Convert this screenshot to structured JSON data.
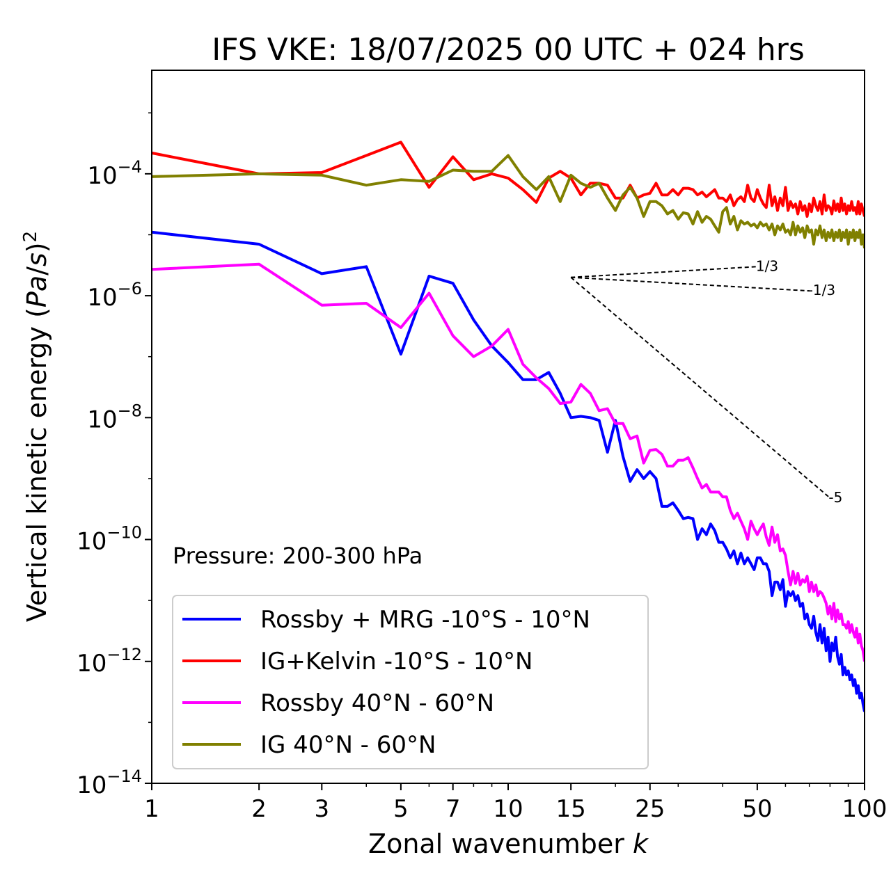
{
  "chart_data": {
    "type": "line",
    "title": "IFS VKE: 18/07/2025 00 UTC + 024 hrs",
    "xlabel": "Zonal wavenumber k",
    "ylabel": "Vertical kinetic energy (Pa/s)^2",
    "xscale": "log",
    "yscale": "log",
    "xlim": [
      1,
      100
    ],
    "ylim": [
      1e-14,
      0.005
    ],
    "xticks": [
      1,
      2,
      3,
      5,
      7,
      10,
      15,
      25,
      50,
      100
    ],
    "xtick_labels": [
      "1",
      "2",
      "3",
      "5",
      "7",
      "10",
      "15",
      "25",
      "50",
      "100"
    ],
    "yticks": [
      -14,
      -12,
      -10,
      -8,
      -6,
      -4
    ],
    "ytick_base": "10",
    "ytick_exponents": [
      "−14",
      "−12",
      "−10",
      "−8",
      "−6",
      "−4"
    ],
    "grid": false,
    "legend_position": "lower-left",
    "annotation": "Pressure: 200-300 hPa",
    "series": [
      {
        "name": "Rossby + MRG -10°S - 10°N",
        "color": "#0000ff",
        "x": [
          1,
          2,
          3,
          4,
          5,
          6,
          7,
          8,
          9,
          10,
          11,
          12,
          13,
          14,
          15,
          16,
          17,
          18,
          19,
          20,
          21,
          22,
          23,
          24,
          25,
          26,
          27,
          28,
          29,
          30,
          31,
          32,
          33,
          34,
          35,
          36,
          37,
          38,
          39,
          40,
          41,
          42,
          43,
          44,
          45,
          46,
          47,
          48,
          49,
          50,
          51,
          52,
          53,
          54,
          55,
          56,
          57,
          58,
          59,
          60,
          61,
          62,
          63,
          64,
          65,
          66,
          67,
          68,
          69,
          70,
          71,
          72,
          73,
          74,
          75,
          76,
          77,
          78,
          79,
          80,
          81,
          82,
          83,
          84,
          85,
          86,
          87,
          88,
          89,
          90,
          91,
          92,
          93,
          94,
          95,
          96,
          97,
          98,
          99,
          100
        ],
        "y": [
          1.1e-05,
          7e-06,
          2.3e-06,
          3e-06,
          1.1e-07,
          2.1e-06,
          1.6e-06,
          4e-07,
          1.5e-07,
          8e-08,
          4.2e-08,
          4.2e-08,
          5.5e-08,
          2.5e-08,
          1e-08,
          1.05e-08,
          1e-08,
          9e-09,
          2.7e-09,
          9e-09,
          2.3e-09,
          9e-10,
          1.4e-09,
          1e-09,
          1.3e-09,
          1e-09,
          3.5e-10,
          3.5e-10,
          4e-10,
          3e-10,
          2.2e-10,
          2.3e-10,
          2.2e-10,
          1e-10,
          1.5e-10,
          1.2e-10,
          1.8e-10,
          1.4e-10,
          9e-11,
          9e-11,
          7e-11,
          5e-11,
          6.5e-11,
          4e-11,
          6e-11,
          4e-11,
          5e-11,
          4e-11,
          3.2e-11,
          5e-11,
          5e-11,
          4e-11,
          4e-11,
          3e-11,
          1.2e-11,
          2e-11,
          2e-11,
          1.5e-11,
          2.2e-11,
          8e-12,
          1.4e-11,
          1.2e-11,
          1.4e-11,
          1e-11,
          1.2e-11,
          8e-12,
          9e-12,
          5e-12,
          6e-12,
          4e-12,
          3.5e-12,
          5.5e-12,
          3e-12,
          2.2e-12,
          4e-12,
          2e-12,
          3.5e-12,
          1.5e-12,
          2.5e-12,
          1e-12,
          2e-12,
          1.5e-12,
          2.5e-12,
          1.2e-12,
          9e-13,
          1.3e-12,
          6e-13,
          8e-13,
          6e-13,
          7e-13,
          5e-13,
          6e-13,
          4e-13,
          5e-13,
          3e-13,
          4e-13,
          2.5e-13,
          3e-13,
          2e-13,
          1.5e-13
        ]
      },
      {
        "name": "IG+Kelvin -10°S - 10°N",
        "color": "#ff0000",
        "x": [
          1,
          2,
          3,
          4,
          5,
          6,
          7,
          8,
          9,
          10,
          11,
          12,
          13,
          14,
          15,
          16,
          17,
          18,
          19,
          20,
          21,
          22,
          23,
          24,
          25,
          26,
          27,
          28,
          29,
          30,
          31,
          32,
          33,
          34,
          35,
          36,
          37,
          38,
          39,
          40,
          41,
          42,
          43,
          44,
          45,
          46,
          47,
          48,
          49,
          50,
          51,
          52,
          53,
          54,
          55,
          56,
          57,
          58,
          59,
          60,
          61,
          62,
          63,
          64,
          65,
          66,
          67,
          68,
          69,
          70,
          71,
          72,
          73,
          74,
          75,
          76,
          77,
          78,
          79,
          80,
          81,
          82,
          83,
          84,
          85,
          86,
          87,
          88,
          89,
          90,
          91,
          92,
          93,
          94,
          95,
          96,
          97,
          98,
          99,
          100
        ],
        "y": [
          0.00022,
          0.0001,
          0.000105,
          0.0002,
          0.00033,
          6e-05,
          0.00019,
          8e-05,
          0.0001,
          8.5e-05,
          5.5e-05,
          3.4e-05,
          8.5e-05,
          0.00011,
          8.5e-05,
          4.5e-05,
          7e-05,
          7e-05,
          6.5e-05,
          4e-05,
          4e-05,
          6.5e-05,
          4e-05,
          4.5e-05,
          4.8e-05,
          7e-05,
          4.5e-05,
          4.5e-05,
          5.5e-05,
          4.5e-05,
          5.8e-05,
          5.8e-05,
          5.5e-05,
          4.5e-05,
          5e-05,
          4.2e-05,
          4.8e-05,
          5.5e-05,
          4e-05,
          4e-05,
          3.5e-05,
          4.5e-05,
          3e-05,
          3.8e-05,
          4.2e-05,
          3.5e-05,
          6.5e-05,
          4e-05,
          3.5e-05,
          5.5e-05,
          4e-05,
          3.2e-05,
          2.8e-05,
          6.5e-05,
          3e-05,
          4.2e-05,
          2.5e-05,
          4e-05,
          3e-05,
          6e-05,
          2.5e-05,
          3.5e-05,
          2.8e-05,
          3.2e-05,
          2.2e-05,
          3.5e-05,
          2.5e-05,
          3e-05,
          2e-05,
          3.2e-05,
          2.4e-05,
          4e-05,
          3e-05,
          2.5e-05,
          3.5e-05,
          2.2e-05,
          4.5e-05,
          2.5e-05,
          3e-05,
          2.8e-05,
          2.2e-05,
          3.6e-05,
          2.5e-05,
          3.2e-05,
          2.4e-05,
          4e-05,
          2.5e-05,
          3.2e-05,
          2.2e-05,
          3e-05,
          2.5e-05,
          3.5e-05,
          2.5e-05,
          2.8e-05,
          2.2e-05,
          3.5e-05,
          2.2e-05,
          3.2e-05,
          2.5e-05,
          2e-05
        ]
      },
      {
        "name": "Rossby 40°N - 60°N",
        "color": "#ff00ff",
        "x": [
          1,
          2,
          3,
          4,
          5,
          6,
          7,
          8,
          9,
          10,
          11,
          12,
          13,
          14,
          15,
          16,
          17,
          18,
          19,
          20,
          21,
          22,
          23,
          24,
          25,
          26,
          27,
          28,
          29,
          30,
          31,
          32,
          33,
          34,
          35,
          36,
          37,
          38,
          39,
          40,
          41,
          42,
          43,
          44,
          45,
          46,
          47,
          48,
          49,
          50,
          51,
          52,
          53,
          54,
          55,
          56,
          57,
          58,
          59,
          60,
          61,
          62,
          63,
          64,
          65,
          66,
          67,
          68,
          69,
          70,
          71,
          72,
          73,
          74,
          75,
          76,
          77,
          78,
          79,
          80,
          81,
          82,
          83,
          84,
          85,
          86,
          87,
          88,
          89,
          90,
          91,
          92,
          93,
          94,
          95,
          96,
          97,
          98,
          99,
          100
        ],
        "y": [
          2.7e-06,
          3.3e-06,
          7e-07,
          7.5e-07,
          3e-07,
          1.1e-06,
          2.2e-07,
          1e-07,
          1.5e-07,
          2.8e-07,
          7.5e-08,
          4.5e-08,
          3e-08,
          1.7e-08,
          1.8e-08,
          3.5e-08,
          2.5e-08,
          1.3e-08,
          1.4e-08,
          8e-09,
          8e-09,
          4.5e-09,
          5e-09,
          1.8e-09,
          2.9e-09,
          3e-09,
          2.5e-09,
          1.6e-09,
          1.6e-09,
          2e-09,
          2e-09,
          2.2e-09,
          1.5e-09,
          1e-09,
          7e-10,
          8e-10,
          6e-10,
          6e-10,
          6e-10,
          5e-10,
          5e-10,
          3e-10,
          2.2e-10,
          2.7e-10,
          2e-10,
          1.5e-10,
          1e-10,
          2e-10,
          1.5e-10,
          1.2e-10,
          1.5e-10,
          1.8e-10,
          1.1e-10,
          8e-11,
          1.6e-10,
          9e-11,
          1.2e-10,
          6.5e-11,
          7e-11,
          5.5e-11,
          3e-11,
          1.8e-11,
          3e-11,
          1.9e-11,
          2.8e-11,
          1.8e-11,
          2.2e-11,
          2e-11,
          2.5e-11,
          1.4e-11,
          2e-11,
          1.4e-11,
          1.8e-11,
          1.2e-11,
          1.4e-11,
          1.3e-11,
          1.1e-11,
          9e-12,
          6e-12,
          8e-12,
          5e-12,
          9e-12,
          4.5e-12,
          7e-12,
          5e-12,
          6e-12,
          4e-12,
          4e-12,
          3.5e-12,
          4.5e-12,
          3e-12,
          4e-12,
          3e-12,
          2.5e-12,
          3.5e-12,
          2e-12,
          2.8e-12,
          1.8e-12,
          1.5e-12,
          1e-12
        ]
      },
      {
        "name": "IG 40°N - 60°N",
        "color": "#808000",
        "x": [
          1,
          2,
          3,
          4,
          5,
          6,
          7,
          8,
          9,
          10,
          11,
          12,
          13,
          14,
          15,
          16,
          17,
          18,
          19,
          20,
          21,
          22,
          23,
          24,
          25,
          26,
          27,
          28,
          29,
          30,
          31,
          32,
          33,
          34,
          35,
          36,
          37,
          38,
          39,
          40,
          41,
          42,
          43,
          44,
          45,
          46,
          47,
          48,
          49,
          50,
          51,
          52,
          53,
          54,
          55,
          56,
          57,
          58,
          59,
          60,
          61,
          62,
          63,
          64,
          65,
          66,
          67,
          68,
          69,
          70,
          71,
          72,
          73,
          74,
          75,
          76,
          77,
          78,
          79,
          80,
          81,
          82,
          83,
          84,
          85,
          86,
          87,
          88,
          89,
          90,
          91,
          92,
          93,
          94,
          95,
          96,
          97,
          98,
          99,
          100
        ],
        "y": [
          9e-05,
          0.0001,
          9.5e-05,
          6.5e-05,
          8e-05,
          7.5e-05,
          0.000115,
          0.00011,
          0.00011,
          0.0002,
          9e-05,
          5.5e-05,
          9e-05,
          3.5e-05,
          9.5e-05,
          7e-05,
          6e-05,
          7e-05,
          4e-05,
          2.5e-05,
          4.5e-05,
          6e-05,
          4e-05,
          2e-05,
          3.5e-05,
          3.5e-05,
          3e-05,
          2.2e-05,
          2.5e-05,
          1.8e-05,
          2.3e-05,
          2.2e-05,
          1.5e-05,
          2.4e-05,
          1.6e-05,
          2e-05,
          1.8e-05,
          1.4e-05,
          1.1e-05,
          2.4e-05,
          2.8e-05,
          1.5e-05,
          2e-05,
          1.2e-05,
          1.7e-05,
          1.5e-05,
          1.6e-05,
          1.4e-05,
          1.5e-05,
          1.3e-05,
          1.6e-05,
          1.4e-05,
          1.5e-05,
          1.2e-05,
          1.5e-05,
          1e-05,
          1.4e-05,
          1.2e-05,
          1.5e-05,
          1.1e-05,
          1.2e-05,
          1e-05,
          1.6e-05,
          1e-05,
          1.4e-05,
          1.1e-05,
          1.3e-05,
          9e-06,
          1.4e-05,
          1.1e-05,
          1.2e-05,
          7e-06,
          1.2e-05,
          1e-05,
          1.4e-05,
          9e-06,
          1.2e-05,
          8e-06,
          1.1e-05,
          9e-06,
          1.2e-05,
          8e-06,
          1.1e-05,
          9e-06,
          1.2e-05,
          8e-06,
          1.1e-05,
          9e-06,
          1.2e-05,
          7e-06,
          1.1e-05,
          9e-06,
          1.2e-05,
          8e-06,
          1.1e-05,
          9e-06,
          1.2e-05,
          7e-06,
          1e-05,
          6e-06
        ]
      }
    ],
    "reference_slopes": [
      {
        "label": "1/3",
        "x0": 15,
        "y0": 2e-06,
        "x1": 50,
        "y1": 3e-06
      },
      {
        "label": "-1/3",
        "x0": 15,
        "y0": 2e-06,
        "x1": 70,
        "y1": 1.2e-06
      },
      {
        "label": "-5",
        "x0": 15,
        "y0": 2e-06,
        "x1": 80,
        "y1": 4.8e-10
      }
    ]
  }
}
